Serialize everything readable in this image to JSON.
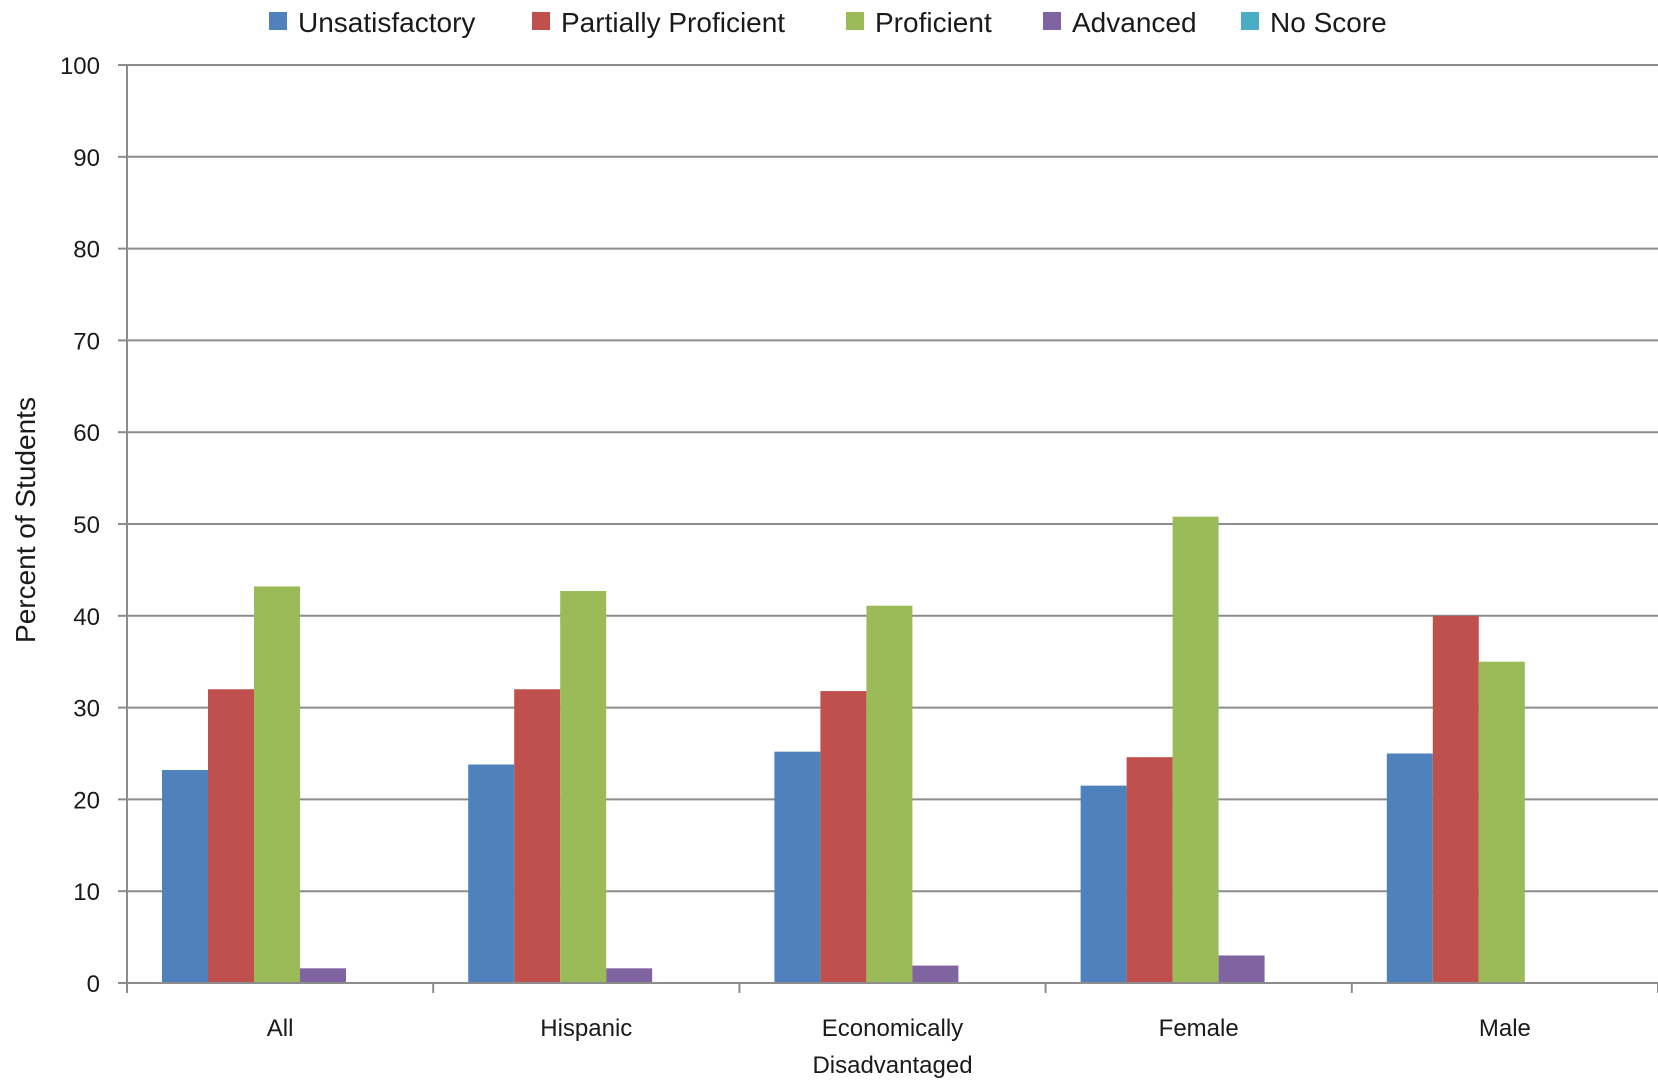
{
  "chart_data": {
    "type": "bar",
    "categories": [
      "All",
      "Hispanic",
      "Economically Disadvantaged",
      "Female",
      "Male"
    ],
    "category_lines": [
      [
        "All"
      ],
      [
        "Hispanic"
      ],
      [
        "Economically",
        "Disadvantaged"
      ],
      [
        "Female"
      ],
      [
        "Male"
      ]
    ],
    "series": [
      {
        "name": "Unsatisfactory",
        "color": "#4F81BD",
        "values": [
          23.2,
          23.8,
          25.2,
          21.5,
          25.0
        ]
      },
      {
        "name": "Partially Proficient",
        "color": "#C0504D",
        "values": [
          32.0,
          32.0,
          31.8,
          24.6,
          40.0
        ]
      },
      {
        "name": "Proficient",
        "color": "#9BBB59",
        "values": [
          43.2,
          42.7,
          41.1,
          50.8,
          35.0
        ]
      },
      {
        "name": "Advanced",
        "color": "#8064A2",
        "values": [
          1.6,
          1.6,
          1.9,
          3.0,
          0
        ]
      },
      {
        "name": "No Score",
        "color": "#4BACC6",
        "values": [
          0,
          0,
          0,
          0,
          0
        ]
      }
    ],
    "title": "",
    "xlabel": "",
    "ylabel": "Percent of Students",
    "ylim": [
      0,
      100
    ],
    "yticks": [
      0,
      10,
      20,
      30,
      40,
      50,
      60,
      70,
      80,
      90,
      100
    ],
    "grid": true,
    "legend_position": "top"
  }
}
